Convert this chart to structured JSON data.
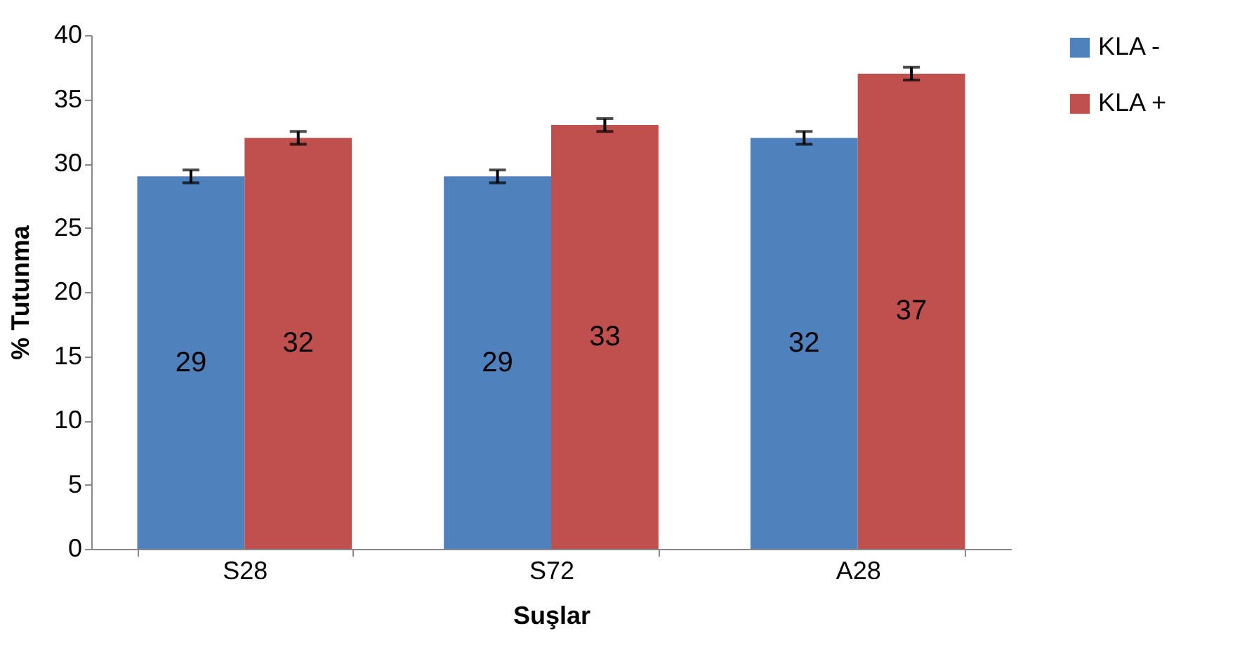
{
  "chart_data": {
    "type": "bar",
    "xlabel": "Suşlar",
    "ylabel": "% Tutunma",
    "categories": [
      "S28",
      "S72",
      "A28"
    ],
    "series": [
      {
        "name": "KLA -",
        "color": "#4f81bd",
        "values": [
          29,
          29,
          32
        ],
        "errors": [
          0.5,
          0.5,
          0.5
        ]
      },
      {
        "name": "KLA +",
        "color": "#c0504d",
        "values": [
          32,
          33,
          37
        ],
        "errors": [
          0.5,
          0.5,
          0.5
        ]
      }
    ],
    "ylim": [
      0,
      40
    ],
    "yticks": [
      0,
      5,
      10,
      15,
      20,
      25,
      30,
      35,
      40
    ],
    "grid": false,
    "legend": "right",
    "data_labels": true
  }
}
